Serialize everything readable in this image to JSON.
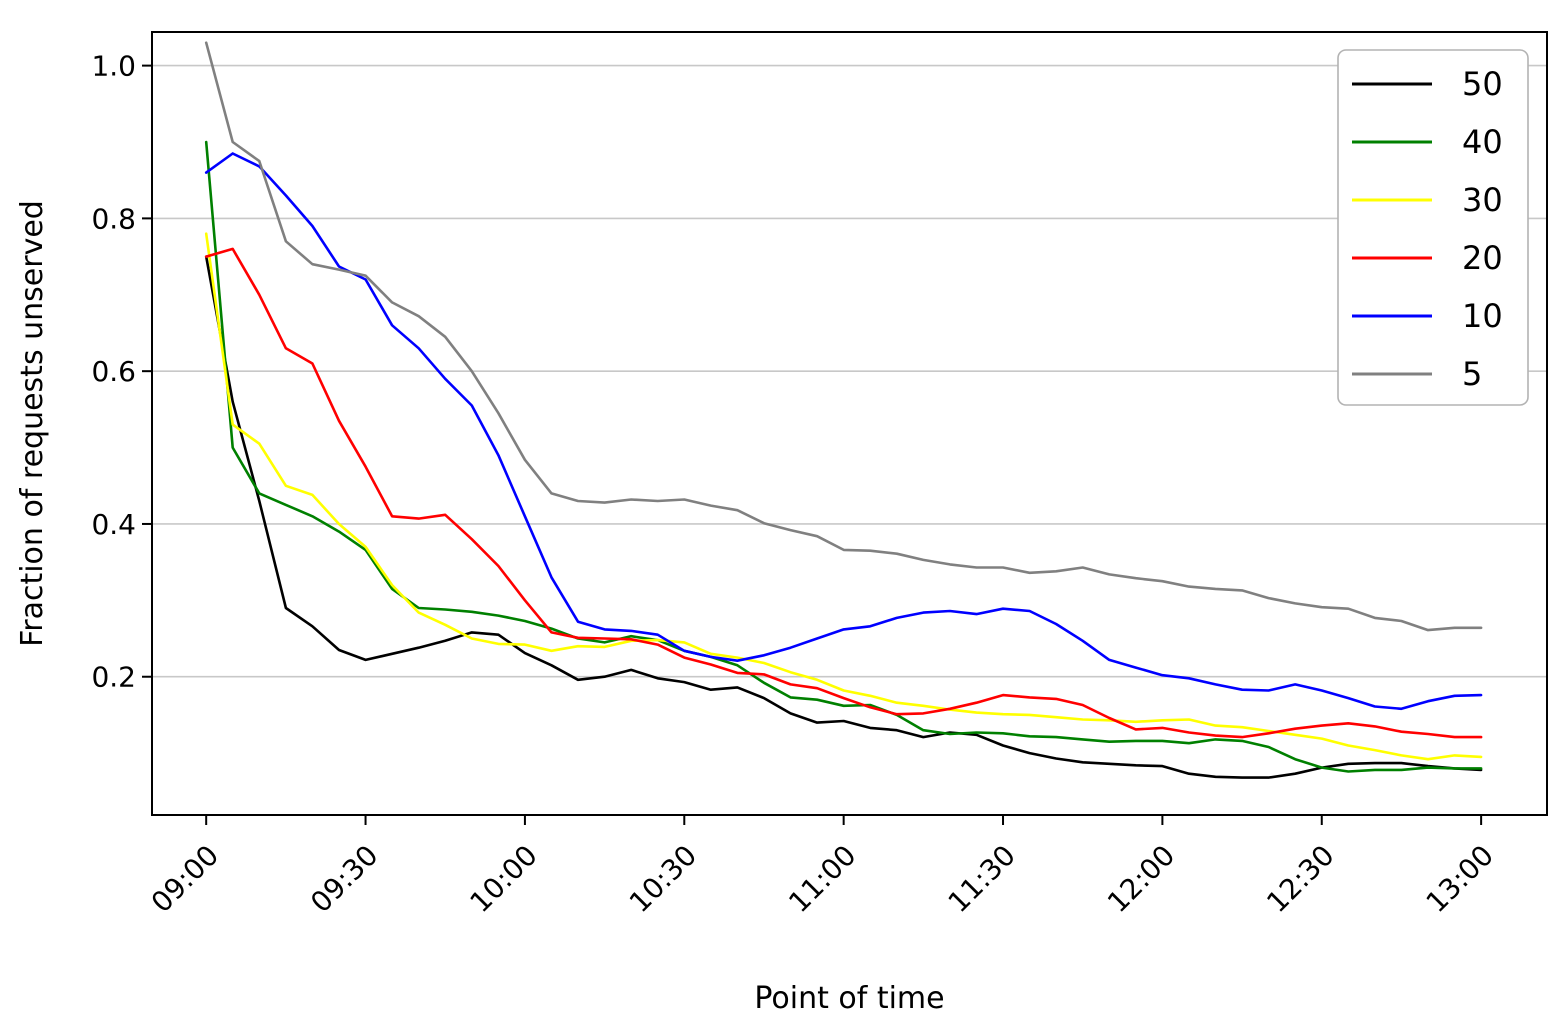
{
  "chart_data": {
    "type": "line",
    "title": "",
    "xlabel": "Point of time",
    "ylabel": "Fraction of requests unserved",
    "grid": "horizontal",
    "grid_color": "#c8c8c8",
    "axis_color": "#000000",
    "background_color": "#ffffff",
    "xlim_minutes": [
      529.8,
      792.4
    ],
    "ylim": [
      0.019,
      1.044
    ],
    "x_ticks": [
      {
        "minute": 540,
        "label": "09:00"
      },
      {
        "minute": 570,
        "label": "09:30"
      },
      {
        "minute": 600,
        "label": "10:00"
      },
      {
        "minute": 630,
        "label": "10:30"
      },
      {
        "minute": 660,
        "label": "11:00"
      },
      {
        "minute": 690,
        "label": "11:30"
      },
      {
        "minute": 720,
        "label": "12:00"
      },
      {
        "minute": 750,
        "label": "12:30"
      },
      {
        "minute": 780,
        "label": "13:00"
      }
    ],
    "y_ticks": [
      {
        "value": 0.2,
        "label": "0.2"
      },
      {
        "value": 0.4,
        "label": "0.4"
      },
      {
        "value": 0.6,
        "label": "0.6"
      },
      {
        "value": 0.8,
        "label": "0.8"
      },
      {
        "value": 1.0,
        "label": "1.0"
      }
    ],
    "legend": {
      "position": "upper-right",
      "border_color": "#b3b3b3",
      "entries": [
        {
          "label": "50",
          "color": "#000000"
        },
        {
          "label": "40",
          "color": "#008000"
        },
        {
          "label": "30",
          "color": "#ffff00"
        },
        {
          "label": "20",
          "color": "#ff0000"
        },
        {
          "label": "10",
          "color": "#0000ff"
        },
        {
          "label": "5",
          "color": "#808080"
        }
      ]
    },
    "x_minutes": [
      540,
      545,
      550,
      555,
      560,
      565,
      570,
      575,
      580,
      585,
      590,
      595,
      600,
      605,
      610,
      615,
      620,
      625,
      630,
      635,
      640,
      645,
      650,
      655,
      660,
      665,
      670,
      675,
      680,
      685,
      690,
      695,
      700,
      705,
      710,
      715,
      720,
      725,
      730,
      735,
      740,
      745,
      750,
      755,
      760,
      765,
      770,
      775,
      780
    ],
    "series": [
      {
        "name": "50",
        "color": "#000000",
        "values": [
          0.75,
          0.56,
          0.43,
          0.29,
          0.266,
          0.235,
          0.222,
          0.23,
          0.238,
          0.247,
          0.258,
          0.255,
          0.231,
          0.215,
          0.196,
          0.2,
          0.209,
          0.198,
          0.193,
          0.183,
          0.186,
          0.172,
          0.152,
          0.14,
          0.142,
          0.133,
          0.13,
          0.121,
          0.127,
          0.124,
          0.11,
          0.1,
          0.093,
          0.088,
          0.086,
          0.084,
          0.083,
          0.073,
          0.069,
          0.068,
          0.068,
          0.073,
          0.081,
          0.086,
          0.087,
          0.087,
          0.083,
          0.08,
          0.078
        ]
      },
      {
        "name": "40",
        "color": "#008000",
        "values": [
          0.9,
          0.5,
          0.44,
          0.425,
          0.41,
          0.39,
          0.366,
          0.315,
          0.29,
          0.288,
          0.285,
          0.28,
          0.273,
          0.263,
          0.25,
          0.245,
          0.253,
          0.248,
          0.234,
          0.226,
          0.215,
          0.192,
          0.173,
          0.17,
          0.162,
          0.163,
          0.15,
          0.13,
          0.125,
          0.127,
          0.126,
          0.122,
          0.121,
          0.118,
          0.115,
          0.116,
          0.116,
          0.113,
          0.118,
          0.116,
          0.108,
          0.092,
          0.081,
          0.076,
          0.078,
          0.078,
          0.081,
          0.08,
          0.08
        ]
      },
      {
        "name": "30",
        "color": "#ffff00",
        "values": [
          0.78,
          0.53,
          0.505,
          0.45,
          0.438,
          0.4,
          0.37,
          0.32,
          0.284,
          0.268,
          0.25,
          0.243,
          0.242,
          0.234,
          0.24,
          0.239,
          0.247,
          0.248,
          0.245,
          0.23,
          0.225,
          0.218,
          0.206,
          0.196,
          0.182,
          0.175,
          0.166,
          0.162,
          0.157,
          0.153,
          0.151,
          0.15,
          0.147,
          0.144,
          0.143,
          0.141,
          0.143,
          0.144,
          0.136,
          0.134,
          0.129,
          0.124,
          0.119,
          0.11,
          0.104,
          0.097,
          0.092,
          0.097,
          0.095
        ]
      },
      {
        "name": "20",
        "color": "#ff0000",
        "values": [
          0.75,
          0.76,
          0.7,
          0.63,
          0.61,
          0.535,
          0.475,
          0.41,
          0.407,
          0.412,
          0.38,
          0.345,
          0.3,
          0.258,
          0.251,
          0.25,
          0.249,
          0.242,
          0.225,
          0.216,
          0.205,
          0.203,
          0.19,
          0.185,
          0.172,
          0.16,
          0.151,
          0.152,
          0.158,
          0.166,
          0.176,
          0.173,
          0.171,
          0.163,
          0.146,
          0.131,
          0.133,
          0.127,
          0.123,
          0.121,
          0.126,
          0.132,
          0.136,
          0.139,
          0.135,
          0.128,
          0.125,
          0.121,
          0.121
        ]
      },
      {
        "name": "10",
        "color": "#0000ff",
        "values": [
          0.86,
          0.885,
          0.868,
          0.83,
          0.79,
          0.737,
          0.72,
          0.66,
          0.63,
          0.59,
          0.555,
          0.49,
          0.41,
          0.33,
          0.272,
          0.262,
          0.26,
          0.255,
          0.234,
          0.226,
          0.221,
          0.228,
          0.238,
          0.25,
          0.262,
          0.266,
          0.277,
          0.284,
          0.286,
          0.282,
          0.289,
          0.286,
          0.269,
          0.247,
          0.222,
          0.212,
          0.202,
          0.198,
          0.19,
          0.183,
          0.182,
          0.19,
          0.182,
          0.172,
          0.161,
          0.158,
          0.168,
          0.175,
          0.176
        ]
      },
      {
        "name": "5",
        "color": "#808080",
        "values": [
          1.03,
          0.9,
          0.875,
          0.77,
          0.74,
          0.733,
          0.725,
          0.69,
          0.672,
          0.645,
          0.6,
          0.545,
          0.484,
          0.44,
          0.43,
          0.428,
          0.432,
          0.43,
          0.432,
          0.424,
          0.418,
          0.401,
          0.392,
          0.384,
          0.366,
          0.365,
          0.361,
          0.353,
          0.347,
          0.343,
          0.343,
          0.336,
          0.338,
          0.343,
          0.334,
          0.329,
          0.325,
          0.318,
          0.315,
          0.313,
          0.303,
          0.296,
          0.291,
          0.289,
          0.277,
          0.273,
          0.261,
          0.264,
          0.264
        ]
      }
    ]
  }
}
